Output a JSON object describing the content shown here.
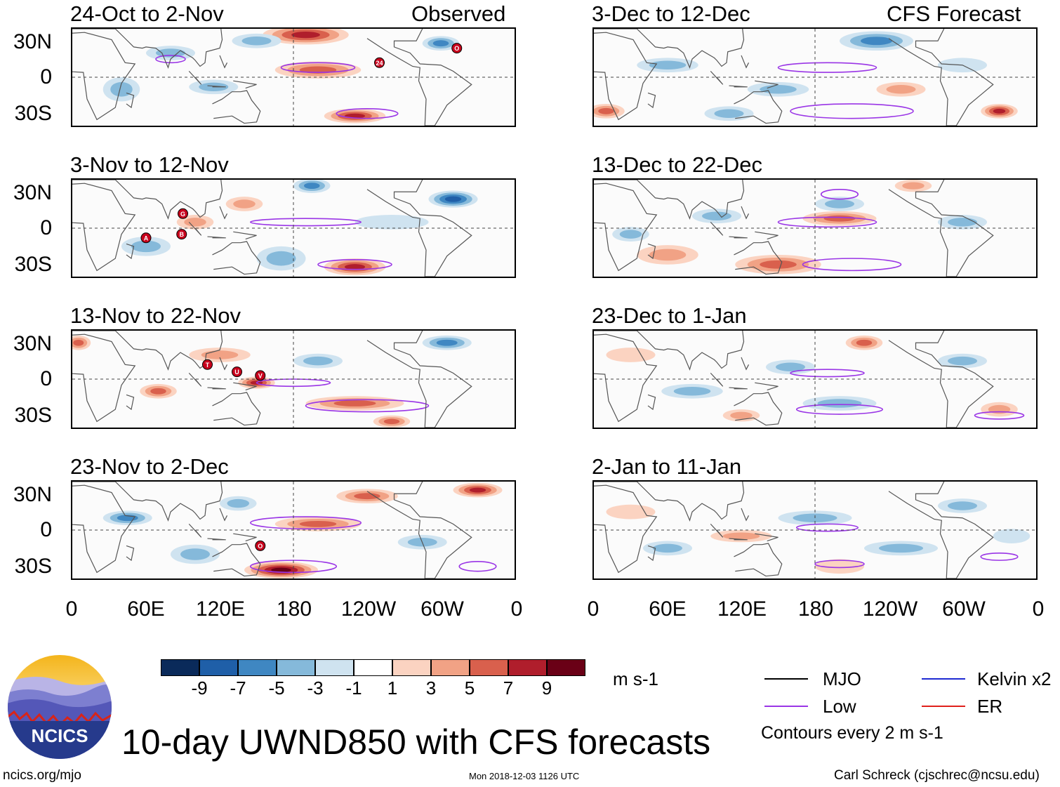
{
  "panels_left": {
    "header_right": "Observed",
    "periods": [
      "24-Oct to 2-Nov",
      "3-Nov to 12-Nov",
      "13-Nov to 22-Nov",
      "23-Nov to 2-Dec"
    ]
  },
  "panels_right": {
    "header_right": "CFS Forecast",
    "periods": [
      "3-Dec to 12-Dec",
      "13-Dec to 22-Dec",
      "23-Dec to 1-Jan",
      "2-Jan to 11-Jan"
    ]
  },
  "lat_labels": [
    "30N",
    "0",
    "30S"
  ],
  "lon_labels": [
    "0",
    "60E",
    "120E",
    "180",
    "120W",
    "60W",
    "0"
  ],
  "colorbar": {
    "ticks": [
      "-9",
      "-7",
      "-5",
      "-3",
      "-1",
      "1",
      "3",
      "5",
      "7",
      "9"
    ],
    "units": "m s-1",
    "colors": [
      "#0a2a5a",
      "#1f5fa8",
      "#3f87c2",
      "#85b9da",
      "#cfe3f0",
      "#ffffff",
      "#fbd3c1",
      "#f1a285",
      "#d9604d",
      "#b01e2c",
      "#6a0016"
    ]
  },
  "legend": {
    "mjo": "MJO",
    "kelvin": "Kelvin x2",
    "low": "Low",
    "er": "ER",
    "contour_note": "Contours every 2 m s-1",
    "colors": {
      "mjo": "#000000",
      "kelvin": "#1e2ad2",
      "low": "#9a35e6",
      "er": "#e0201b"
    }
  },
  "logo_text": "NCICS",
  "main_title": "10-day UWND850 with CFS forecasts",
  "footer": {
    "url": "ncics.org/mjo",
    "timestamp": "Mon 2018-12-03 1126 UTC",
    "author": "Carl Schreck (cjschrec@ncsu.edu)"
  },
  "storm_markers": [
    {
      "panel": 0,
      "label": "O",
      "lon": 313,
      "lat": 24
    },
    {
      "panel": 0,
      "label": "24",
      "lon": 250,
      "lat": 12
    },
    {
      "panel": 1,
      "label": "G",
      "lon": 90,
      "lat": 12
    },
    {
      "panel": 1,
      "label": "A",
      "lon": 60,
      "lat": -8
    },
    {
      "panel": 1,
      "label": "B",
      "lon": 89,
      "lat": -5
    },
    {
      "panel": 2,
      "label": "T",
      "lon": 110,
      "lat": 12
    },
    {
      "panel": 2,
      "label": "U",
      "lon": 134,
      "lat": 6
    },
    {
      "panel": 2,
      "label": "V",
      "lon": 153,
      "lat": 3
    },
    {
      "panel": 3,
      "label": "O",
      "lon": 153,
      "lat": -13
    }
  ]
}
